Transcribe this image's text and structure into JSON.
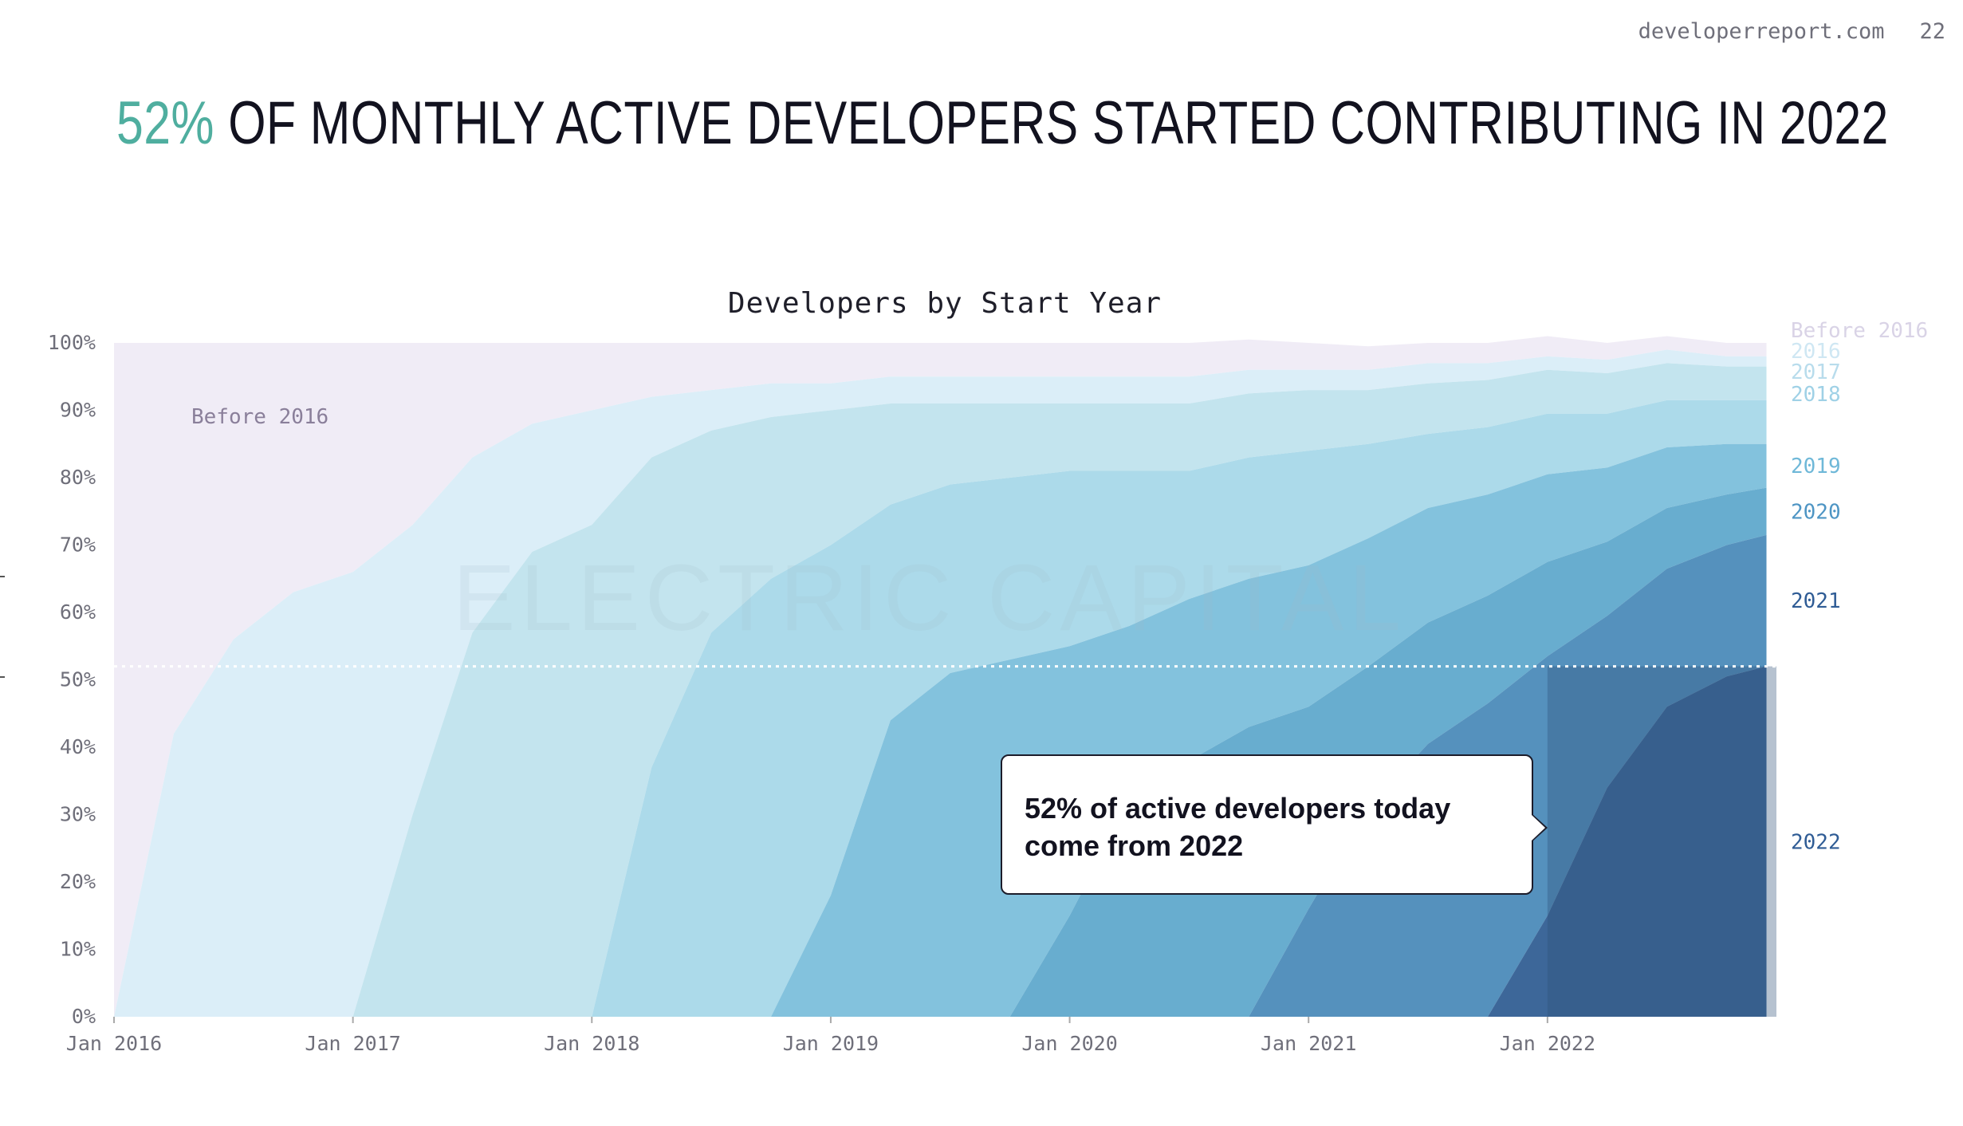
{
  "header": {
    "site": "developerreport.com",
    "page_number": "22"
  },
  "headline": {
    "accent": "52%",
    "rest": " OF MONTHLY ACTIVE DEVELOPERS STARTED CONTRIBUTING IN 2022"
  },
  "watermark": "ELECTRIC CAPITAL",
  "callout": {
    "line1": "52% of active developers today",
    "line2": "come from 2022"
  },
  "chart_data": {
    "type": "area",
    "stacked": true,
    "normalized_percent": true,
    "title": "Developers by Start Year",
    "xlabel": "",
    "ylabel": "",
    "x_ticks": [
      "Jan 2016",
      "Jan 2017",
      "Jan 2018",
      "Jan 2019",
      "Jan 2020",
      "Jan 2021",
      "Jan 2022"
    ],
    "y_ticks": [
      "0%",
      "10%",
      "20%",
      "30%",
      "40%",
      "50%",
      "60%",
      "70%",
      "80%",
      "90%",
      "100%"
    ],
    "ylim": [
      0,
      100
    ],
    "x_points": [
      "2016-01",
      "2016-04",
      "2016-07",
      "2016-10",
      "2017-01",
      "2017-04",
      "2017-07",
      "2017-10",
      "2018-01",
      "2018-04",
      "2018-07",
      "2018-10",
      "2019-01",
      "2019-04",
      "2019-07",
      "2019-10",
      "2020-01",
      "2020-04",
      "2020-07",
      "2020-10",
      "2021-01",
      "2021-04",
      "2021-07",
      "2021-10",
      "2022-01",
      "2022-04",
      "2022-07",
      "2022-10",
      "2022-12"
    ],
    "series": [
      {
        "name": "Before 2016",
        "color": "#f0ecf6",
        "values": [
          100,
          58,
          44,
          37,
          34,
          27,
          17,
          12,
          10,
          8,
          7,
          6,
          6,
          5,
          5,
          5,
          5,
          5,
          5,
          4.5,
          4,
          3.5,
          3,
          3,
          3,
          2.5,
          2,
          2,
          2
        ]
      },
      {
        "name": "2016",
        "color": "#dbeef8",
        "values": [
          0,
          42,
          56,
          63,
          66,
          43,
          26,
          19,
          17,
          9,
          6,
          5,
          4,
          4,
          4,
          4,
          4,
          4,
          4,
          3.5,
          3,
          3,
          3,
          2.5,
          2,
          2,
          2,
          1.5,
          1.5
        ]
      },
      {
        "name": "2017",
        "color": "#c3e4ee",
        "values": [
          0,
          0,
          0,
          0,
          0,
          30,
          57,
          69,
          73,
          46,
          30,
          24,
          20,
          15,
          12,
          11,
          10,
          10,
          10,
          9.5,
          9,
          8,
          7.5,
          7,
          6.5,
          6,
          5.5,
          5,
          5
        ]
      },
      {
        "name": "2018",
        "color": "#acdaea",
        "values": [
          0,
          0,
          0,
          0,
          0,
          0,
          0,
          0,
          0,
          37,
          57,
          65,
          52,
          32,
          28,
          27,
          26,
          23,
          19,
          18,
          17,
          14,
          11,
          10,
          9,
          8,
          7,
          6.5,
          6.5
        ]
      },
      {
        "name": "2019",
        "color": "#83c2dd",
        "values": [
          0,
          0,
          0,
          0,
          0,
          0,
          0,
          0,
          0,
          0,
          0,
          0,
          18,
          44,
          51,
          53,
          40,
          26,
          24,
          22,
          21,
          19,
          17,
          15,
          13,
          11,
          9,
          7.5,
          6.5
        ]
      },
      {
        "name": "2020",
        "color": "#68adcf",
        "values": [
          0,
          0,
          0,
          0,
          0,
          0,
          0,
          0,
          0,
          0,
          0,
          0,
          0,
          0,
          0,
          0,
          15,
          32,
          38,
          43,
          30,
          21,
          18,
          16,
          14,
          11,
          9,
          7.5,
          7
        ]
      },
      {
        "name": "2021",
        "color": "#5591bd",
        "values": [
          0,
          0,
          0,
          0,
          0,
          0,
          0,
          0,
          0,
          0,
          0,
          0,
          0,
          0,
          0,
          0,
          0,
          0,
          0,
          0,
          16,
          31,
          40.5,
          46.5,
          38.5,
          25.5,
          20.5,
          19.5,
          19.5
        ]
      },
      {
        "name": "2022",
        "color": "#3d6799",
        "values": [
          0,
          0,
          0,
          0,
          0,
          0,
          0,
          0,
          0,
          0,
          0,
          0,
          0,
          0,
          0,
          0,
          0,
          0,
          0,
          0,
          0,
          0,
          0,
          0,
          15,
          34,
          46,
          50.5,
          52
        ]
      }
    ],
    "series_label_colors": {
      "Before 2016": "#d9d3e6",
      "2016": "#cfe7f3",
      "2017": "#b8dcec",
      "2018": "#9fd1e6",
      "2019": "#6fb8d8",
      "2020": "#4e95c4",
      "2021": "#2f5c95",
      "2022": "#2f5c95"
    },
    "inline_label": "Before 2016",
    "reference_line": 52,
    "highlight_start": "2022-01"
  }
}
